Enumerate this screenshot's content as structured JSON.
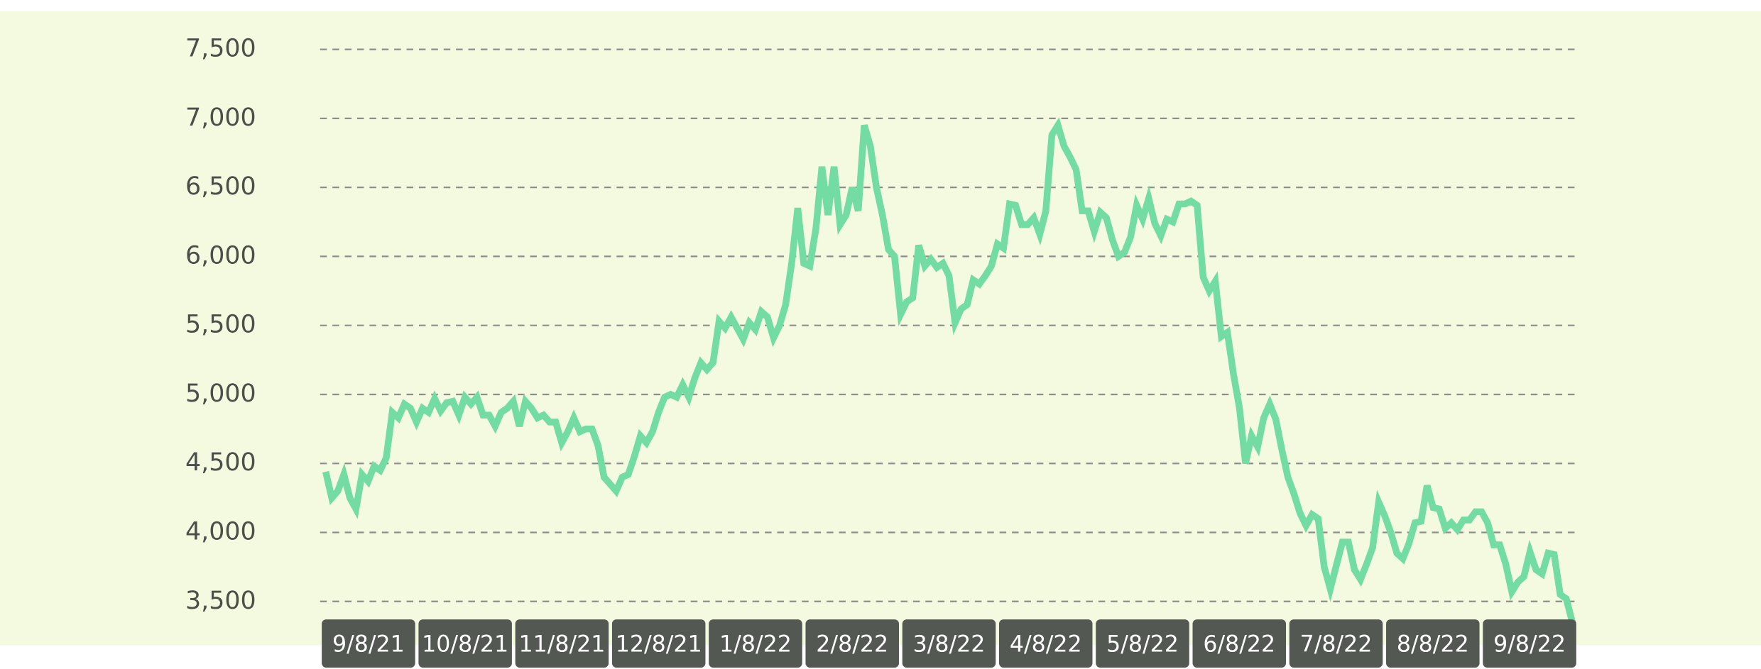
{
  "chart_data": {
    "type": "line",
    "xtick_labels": [
      "9/8/21",
      "10/8/21",
      "11/8/21",
      "12/8/21",
      "1/8/22",
      "2/8/22",
      "3/8/22",
      "4/8/22",
      "5/8/22",
      "6/8/22",
      "7/8/22",
      "8/8/22",
      "9/8/22"
    ],
    "values": [
      4440,
      4250,
      4300,
      4420,
      4250,
      4170,
      4420,
      4370,
      4480,
      4450,
      4540,
      4870,
      4830,
      4930,
      4900,
      4800,
      4900,
      4870,
      4970,
      4880,
      4940,
      4950,
      4850,
      4980,
      4930,
      4980,
      4850,
      4850,
      4770,
      4870,
      4900,
      4950,
      4770,
      4950,
      4900,
      4830,
      4850,
      4800,
      4800,
      4650,
      4730,
      4830,
      4730,
      4750,
      4750,
      4630,
      4400,
      4350,
      4300,
      4400,
      4420,
      4550,
      4700,
      4650,
      4730,
      4870,
      4980,
      5000,
      4980,
      5070,
      4980,
      5120,
      5230,
      5180,
      5230,
      5530,
      5480,
      5560,
      5480,
      5400,
      5520,
      5470,
      5600,
      5560,
      5410,
      5500,
      5650,
      5950,
      6350,
      5950,
      5930,
      6200,
      6650,
      6300,
      6650,
      6230,
      6300,
      6500,
      6330,
      6950,
      6800,
      6500,
      6300,
      6050,
      6000,
      5580,
      5670,
      5700,
      6080,
      5930,
      5980,
      5920,
      5950,
      5860,
      5520,
      5620,
      5650,
      5830,
      5800,
      5860,
      5930,
      6090,
      6060,
      6380,
      6370,
      6230,
      6230,
      6280,
      6160,
      6330,
      6880,
      6950,
      6800,
      6720,
      6630,
      6330,
      6330,
      6180,
      6320,
      6280,
      6120,
      6000,
      6030,
      6140,
      6370,
      6270,
      6420,
      6240,
      6150,
      6270,
      6250,
      6380,
      6380,
      6400,
      6370,
      5850,
      5750,
      5820,
      5420,
      5450,
      5150,
      4900,
      4500,
      4700,
      4620,
      4830,
      4930,
      4820,
      4600,
      4400,
      4280,
      4140,
      4050,
      4130,
      4100,
      3750,
      3590,
      3760,
      3930,
      3930,
      3730,
      3660,
      3770,
      3890,
      4220,
      4120,
      4000,
      3850,
      3810,
      3920,
      4070,
      4080,
      4340,
      4180,
      4170,
      4030,
      4070,
      4020,
      4090,
      4090,
      4150,
      4150,
      4070,
      3910,
      3910,
      3770,
      3570,
      3640,
      3680,
      3860,
      3730,
      3700,
      3850,
      3840,
      3550,
      3520,
      3350
    ],
    "color": "#72dca2",
    "ylim": [
      3500,
      7500
    ],
    "yticks": [
      {
        "value": 3500,
        "label": "3,500"
      },
      {
        "value": 4000,
        "label": "4,000"
      },
      {
        "value": 4500,
        "label": "4,500"
      },
      {
        "value": 5000,
        "label": "5,000"
      },
      {
        "value": 5500,
        "label": "5,500"
      },
      {
        "value": 6000,
        "label": "6,000"
      },
      {
        "value": 6500,
        "label": "6,500"
      },
      {
        "value": 7000,
        "label": "7,000"
      },
      {
        "value": 7500,
        "label": "7,500"
      }
    ],
    "grid": true
  }
}
